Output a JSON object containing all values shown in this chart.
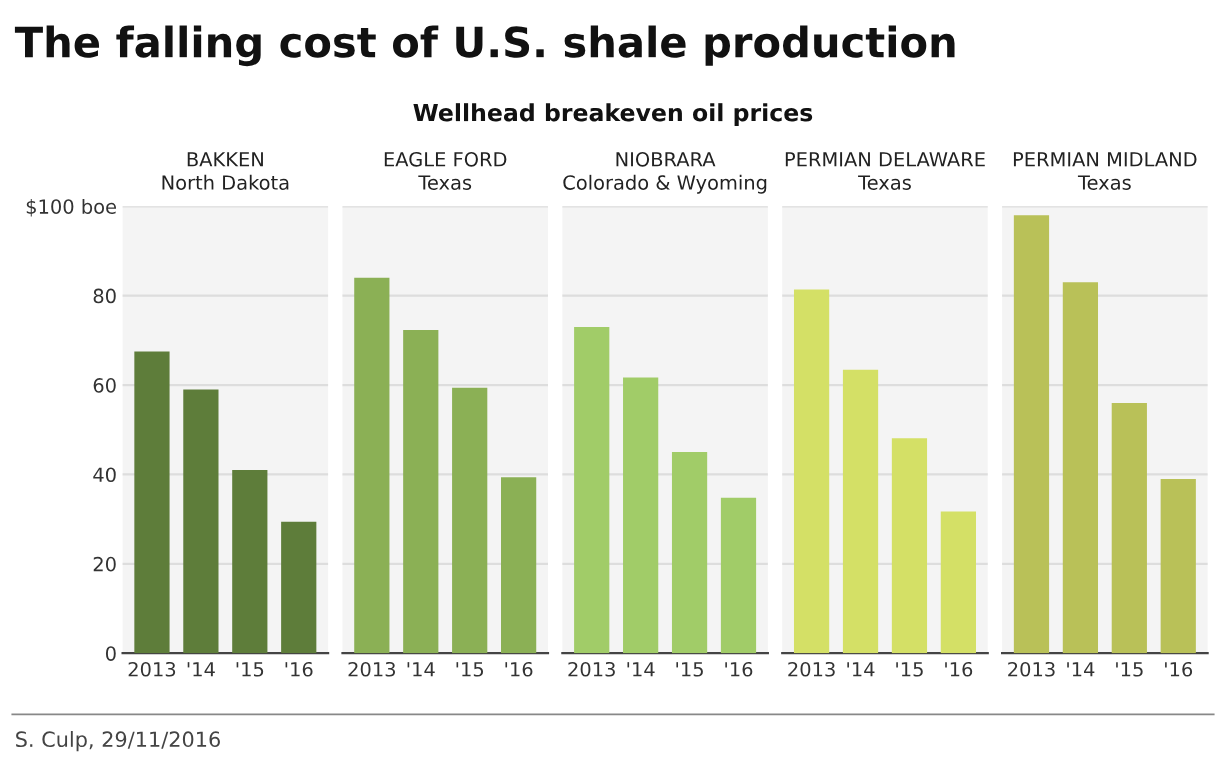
{
  "chart_data": [
    {
      "type": "bar",
      "title": "BAKKEN\nNorth Dakota",
      "categories": [
        "2013",
        "'14",
        "'15",
        "'16"
      ],
      "values": [
        67.5,
        59,
        41,
        29.4
      ],
      "color": "#5e7d3a",
      "ylim": [
        0,
        100
      ],
      "yticks": [
        0,
        20,
        40,
        60,
        80,
        {
          "value": 100,
          "label": "$100 boe"
        }
      ],
      "grid": "y",
      "tick_labels": "xy",
      "annotations": [
        "The falling cost of U.S. shale production",
        "Wellhead breakeven oil prices",
        "S. Culp, 29/11/2016"
      ]
    },
    {
      "type": "bar",
      "title": "EAGLE FORD\nTexas",
      "categories": [
        "2013",
        "'14",
        "'15",
        "'16"
      ],
      "values": [
        84,
        72.3,
        59.4,
        39.4
      ],
      "color": "#8bb055",
      "ylim": [
        0,
        100
      ],
      "yticks": [
        0,
        20,
        40,
        60,
        80,
        100
      ],
      "grid": "y",
      "tick_labels": "x"
    },
    {
      "type": "bar",
      "title": "NIOBRARA\nColorado & Wyoming",
      "categories": [
        "2013",
        "'14",
        "'15",
        "'16"
      ],
      "values": [
        73,
        61.7,
        45,
        34.8
      ],
      "color": "#a1cc68",
      "ylim": [
        0,
        100
      ],
      "yticks": [
        0,
        20,
        40,
        60,
        80,
        100
      ],
      "grid": "y",
      "tick_labels": "x"
    },
    {
      "type": "bar",
      "title": "PERMIAN DELAWARE\nTexas",
      "categories": [
        "2013",
        "'14",
        "'15",
        "'16"
      ],
      "values": [
        81.4,
        63.4,
        48.1,
        31.7
      ],
      "color": "#d4e066",
      "ylim": [
        0,
        100
      ],
      "yticks": [
        0,
        20,
        40,
        60,
        80,
        100
      ],
      "grid": "y",
      "tick_labels": "x"
    },
    {
      "type": "bar",
      "title": "PERMIAN MIDLAND\nTexas",
      "categories": [
        "2013",
        "'14",
        "'15",
        "'16"
      ],
      "values": [
        98,
        83,
        56,
        39
      ],
      "color": "#b9c158",
      "ylim": [
        0,
        100
      ],
      "yticks": [
        0,
        20,
        40,
        60,
        80,
        100
      ],
      "grid": "y",
      "tick_labels": "x"
    }
  ]
}
